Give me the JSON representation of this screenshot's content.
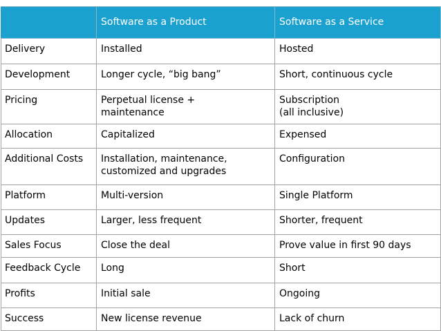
{
  "table": {
    "headers": [
      "",
      "Software as a Product",
      "Software as a Service"
    ],
    "rows": [
      {
        "category": "Delivery",
        "product": [
          "Installed"
        ],
        "service": [
          "Hosted"
        ]
      },
      {
        "category": "Development",
        "product": [
          "Longer cycle, “big bang”"
        ],
        "service": [
          "Short, continuous cycle"
        ]
      },
      {
        "category": "Pricing",
        "product": [
          "Perpetual license +",
          "maintenance"
        ],
        "service": [
          "Subscription",
          "(all inclusive)"
        ]
      },
      {
        "category": "Allocation",
        "product": [
          "Capitalized"
        ],
        "service": [
          "Expensed"
        ]
      },
      {
        "category": "Additional Costs",
        "product": [
          "Installation, maintenance,",
          "customized and upgrades"
        ],
        "service": [
          "Configuration"
        ]
      },
      {
        "category": "Platform",
        "product": [
          "Multi-version"
        ],
        "service": [
          "Single Platform"
        ]
      },
      {
        "category": "Updates",
        "product": [
          "Larger, less frequent"
        ],
        "service": [
          "Shorter, frequent"
        ]
      },
      {
        "category": "Sales Focus",
        "product": [
          "Close the deal"
        ],
        "service": [
          "Prove value in first 90 days"
        ]
      },
      {
        "category": "Feedback Cycle",
        "product": [
          "Long"
        ],
        "service": [
          "Short"
        ]
      },
      {
        "category": "Profits",
        "product": [
          "Initial sale"
        ],
        "service": [
          "Ongoing"
        ]
      },
      {
        "category": "Success",
        "product": [
          "New license revenue"
        ],
        "service": [
          "Lack of churn"
        ]
      }
    ]
  },
  "colors": {
    "header_background": "#1ba1d0",
    "header_text": "#ffffff",
    "body_text": "#000000",
    "grid_lines": "#a2a2a2"
  }
}
